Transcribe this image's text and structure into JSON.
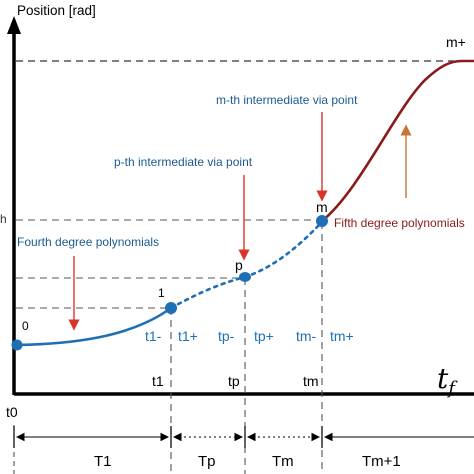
{
  "chart_data": {
    "type": "line",
    "ylabel": "Position [rad]",
    "xlabel": "t_f",
    "time_points": [
      {
        "key": "t0",
        "label": "t0"
      },
      {
        "key": "t1",
        "label": "t1"
      },
      {
        "key": "tp",
        "label": "tp"
      },
      {
        "key": "tm",
        "label": "tm"
      }
    ],
    "sub_labels": {
      "t1_minus": "t1-",
      "t1_plus": "t1+",
      "tp_minus": "tp-",
      "tp_plus": "tp+",
      "tm_minus": "tm-",
      "tm_plus": "tm+"
    },
    "points": [
      {
        "key": "p0",
        "label": "0"
      },
      {
        "key": "p1",
        "label": "1"
      },
      {
        "key": "pp",
        "label": "p"
      },
      {
        "key": "pm",
        "label": "m"
      },
      {
        "key": "pend",
        "label": "m+"
      }
    ],
    "y_tick_fragment": "h",
    "series": [
      {
        "name": "Fourth degree polynomials",
        "color": "#1f6fb5",
        "style": "solid"
      },
      {
        "name": "intermediate segment",
        "color": "#1f6fb5",
        "style": "dotted"
      },
      {
        "name": "Fifth degree polynomials",
        "color": "#8b1a1a",
        "style": "solid"
      }
    ],
    "annotations": {
      "fourth": "Fourth degree polynomials",
      "fifth": "Fifth degree polynomials",
      "p_via": "p-th intermediate via point",
      "m_via": "m-th intermediate via point"
    },
    "intervals": [
      {
        "key": "T1",
        "label": "T1",
        "style": "solid"
      },
      {
        "key": "Tp",
        "label": "Tp",
        "style": "dotted"
      },
      {
        "key": "Tm",
        "label": "Tm",
        "style": "dotted"
      },
      {
        "key": "Tm1",
        "label": "Tm+1",
        "style": "solid"
      }
    ],
    "colors": {
      "axis": "#000000",
      "blue": "#1f6fb5",
      "darkred": "#8b1a1a",
      "arrow_red": "#d9342b",
      "arrow_orange": "#c87533",
      "guide": "#555555",
      "label_text": "#1d5a94"
    }
  }
}
